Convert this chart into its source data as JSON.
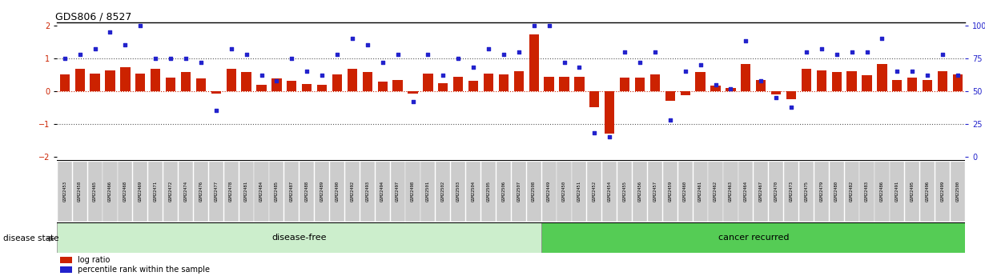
{
  "title": "GDS806 / 8527",
  "samples": [
    "GSM22453",
    "GSM22458",
    "GSM22465",
    "GSM22466",
    "GSM22468",
    "GSM22469",
    "GSM22471",
    "GSM22472",
    "GSM22474",
    "GSM22476",
    "GSM22477",
    "GSM22478",
    "GSM22481",
    "GSM22484",
    "GSM22485",
    "GSM22487",
    "GSM22488",
    "GSM22489",
    "GSM22490",
    "GSM22492",
    "GSM22493",
    "GSM22494",
    "GSM22497",
    "GSM22498",
    "GSM22501",
    "GSM22502",
    "GSM22503",
    "GSM22504",
    "GSM22505",
    "GSM22506",
    "GSM22507",
    "GSM22508",
    "GSM22449",
    "GSM22450",
    "GSM22451",
    "GSM22452",
    "GSM22454",
    "GSM22455",
    "GSM22456",
    "GSM22457",
    "GSM22459",
    "GSM22460",
    "GSM22461",
    "GSM22462",
    "GSM22463",
    "GSM22464",
    "GSM22467",
    "GSM22470",
    "GSM22473",
    "GSM22475",
    "GSM22479",
    "GSM22480",
    "GSM22482",
    "GSM22483",
    "GSM22486",
    "GSM22491",
    "GSM22495",
    "GSM22496",
    "GSM22499",
    "GSM22500"
  ],
  "log_ratio": [
    0.5,
    0.68,
    0.52,
    0.62,
    0.72,
    0.52,
    0.68,
    0.4,
    0.58,
    0.38,
    -0.08,
    0.68,
    0.58,
    0.18,
    0.38,
    0.32,
    0.22,
    0.2,
    0.5,
    0.68,
    0.58,
    0.3,
    0.34,
    -0.08,
    0.52,
    0.24,
    0.44,
    0.32,
    0.52,
    0.5,
    0.6,
    1.72,
    0.44,
    0.44,
    0.44,
    -0.5,
    -1.3,
    0.4,
    0.4,
    0.5,
    -0.3,
    -0.12,
    0.58,
    0.16,
    0.1,
    0.82,
    0.34,
    -0.1,
    -0.24,
    0.68,
    0.62,
    0.58,
    0.6,
    0.48,
    0.82,
    0.34,
    0.42,
    0.34,
    0.6,
    0.5
  ],
  "percentile": [
    75,
    78,
    82,
    95,
    85,
    100,
    75,
    75,
    75,
    72,
    35,
    82,
    78,
    62,
    58,
    75,
    65,
    62,
    78,
    90,
    85,
    72,
    78,
    42,
    78,
    62,
    75,
    68,
    82,
    78,
    80,
    100,
    100,
    72,
    68,
    18,
    15,
    80,
    72,
    80,
    28,
    65,
    70,
    55,
    52,
    88,
    58,
    45,
    38,
    80,
    82,
    78,
    80,
    80,
    90,
    65,
    65,
    62,
    78,
    62
  ],
  "disease_free_count": 32,
  "bar_color": "#cc2200",
  "dot_color": "#2222cc",
  "dotted_line_color": "#555555",
  "zero_line_color": "#cc2200",
  "disease_free_color": "#cceecc",
  "cancer_recurred_color": "#55cc55",
  "label_bg_color": "#cccccc",
  "ylim": [
    -2.1,
    2.1
  ],
  "yticks_left": [
    -2,
    -1,
    0,
    1,
    2
  ],
  "yticks_right": [
    0,
    25,
    50,
    75,
    100
  ]
}
